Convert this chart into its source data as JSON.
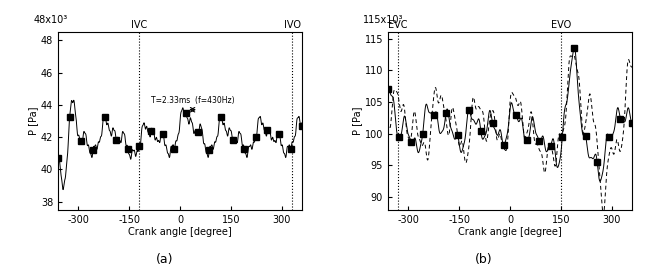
{
  "left_xlim": [
    -360,
    360
  ],
  "left_ylim": [
    37500,
    48500
  ],
  "left_yticks": [
    38000,
    40000,
    42000,
    44000,
    46000,
    48000
  ],
  "left_ytick_labels": [
    "38",
    "40",
    "42",
    "44",
    "46",
    "48"
  ],
  "left_ylabel": "P [Pa]",
  "left_xlabel": "Crank angle [degree]",
  "left_xticks": [
    -300,
    -150,
    0,
    150,
    300
  ],
  "left_scale_label": "48x10³",
  "left_vlines": [
    -120,
    330
  ],
  "left_vline_labels": [
    "IVC",
    "IVO"
  ],
  "left_annotation": "T=2.33ms  (f=430Hz)",
  "subtitle_a": "(a)",
  "right_xlim": [
    -360,
    360
  ],
  "right_ylim": [
    88000,
    116000
  ],
  "right_yticks": [
    90000,
    95000,
    100000,
    105000,
    110000,
    115000
  ],
  "right_ytick_labels": [
    "90",
    "95",
    "100",
    "105",
    "110",
    "115"
  ],
  "right_ylabel": "P [Pa]",
  "right_xlabel": "Crank angle [degree]",
  "right_xticks": [
    -300,
    -150,
    0,
    150,
    300
  ],
  "right_scale_label": "115x10³",
  "right_vlines": [
    -330,
    150
  ],
  "right_vline_labels": [
    "EVC",
    "EVO"
  ],
  "subtitle_b": "(b)",
  "line_color": "black",
  "marker_style": "s",
  "marker_size": 4
}
